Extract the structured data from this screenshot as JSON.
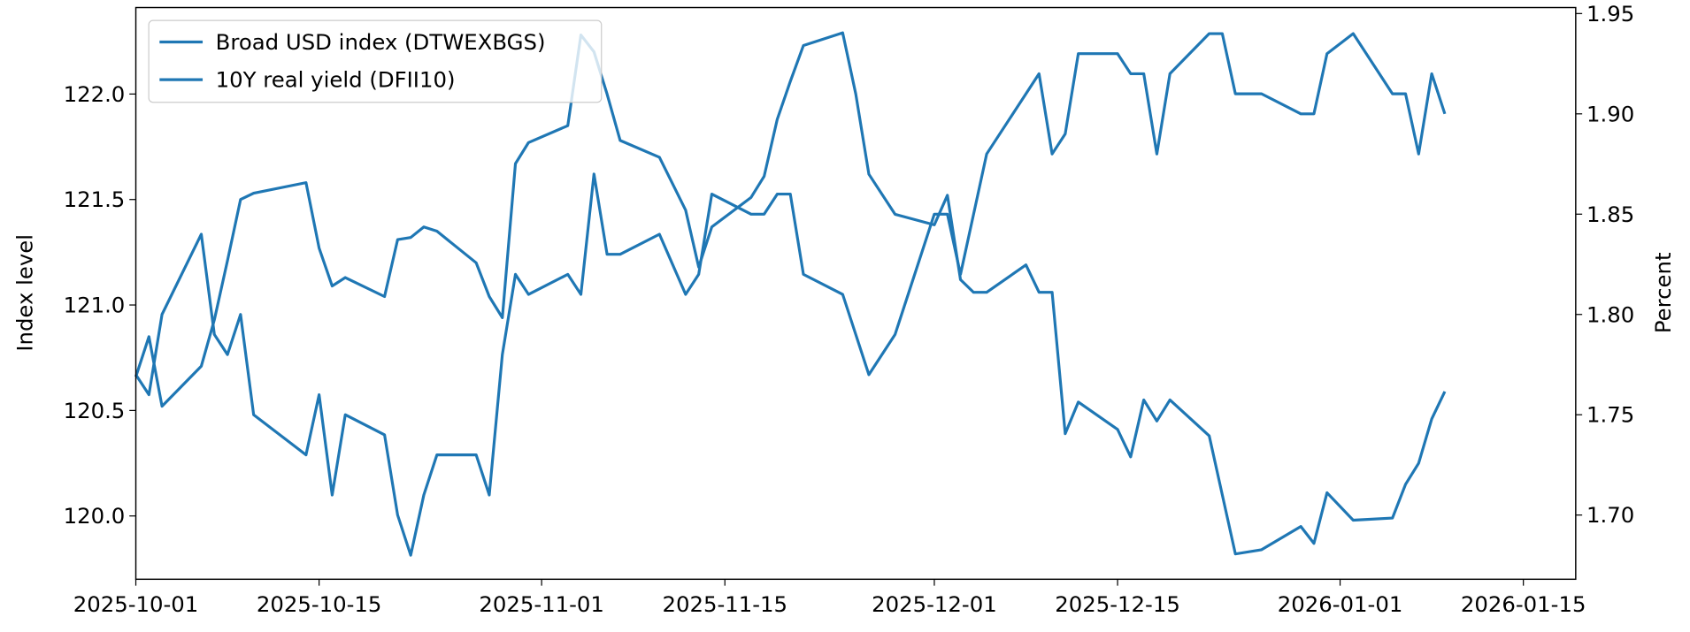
{
  "chart_data": {
    "type": "line",
    "y_label": "Index level",
    "y2_label": "Percent",
    "x": [
      "2025-10-01",
      "2025-10-02",
      "2025-10-03",
      "2025-10-06",
      "2025-10-07",
      "2025-10-08",
      "2025-10-09",
      "2025-10-10",
      "2025-10-14",
      "2025-10-15",
      "2025-10-16",
      "2025-10-17",
      "2025-10-20",
      "2025-10-21",
      "2025-10-22",
      "2025-10-23",
      "2025-10-24",
      "2025-10-27",
      "2025-10-28",
      "2025-10-29",
      "2025-10-30",
      "2025-10-31",
      "2025-11-03",
      "2025-11-04",
      "2025-11-05",
      "2025-11-06",
      "2025-11-07",
      "2025-11-10",
      "2025-11-12",
      "2025-11-13",
      "2025-11-14",
      "2025-11-17",
      "2025-11-18",
      "2025-11-19",
      "2025-11-20",
      "2025-11-21",
      "2025-11-24",
      "2025-11-25",
      "2025-11-26",
      "2025-11-28",
      "2025-12-01",
      "2025-12-02",
      "2025-12-03",
      "2025-12-04",
      "2025-12-05",
      "2025-12-08",
      "2025-12-09",
      "2025-12-10",
      "2025-12-11",
      "2025-12-12",
      "2025-12-15",
      "2025-12-16",
      "2025-12-17",
      "2025-12-18",
      "2025-12-19",
      "2025-12-22",
      "2025-12-23",
      "2025-12-24",
      "2025-12-26",
      "2025-12-29",
      "2025-12-30",
      "2025-12-31",
      "2026-01-02",
      "2026-01-05",
      "2026-01-06",
      "2026-01-07",
      "2026-01-08",
      "2026-01-09"
    ],
    "series": [
      {
        "name": "Broad USD index (DTWEXBGS)",
        "color": "#1f77b4",
        "axis": "y",
        "values": [
          120.66,
          120.85,
          120.52,
          120.71,
          120.93,
          121.21,
          121.5,
          121.53,
          121.58,
          121.27,
          121.09,
          121.13,
          121.04,
          121.31,
          121.32,
          121.37,
          121.35,
          121.2,
          121.04,
          120.94,
          121.67,
          121.77,
          121.85,
          122.28,
          122.2,
          122.0,
          121.78,
          121.7,
          121.45,
          121.18,
          121.37,
          121.51,
          121.61,
          121.88,
          122.06,
          122.23,
          122.29,
          122.0,
          121.62,
          121.43,
          121.38,
          121.52,
          121.12,
          121.06,
          121.06,
          121.19,
          121.06,
          121.06,
          120.39,
          120.54,
          120.41,
          120.28,
          120.55,
          120.45,
          120.55,
          120.38,
          120.1,
          119.82,
          119.84,
          119.95,
          119.87,
          120.11,
          119.98,
          119.99,
          120.15,
          120.25,
          120.46,
          120.59
        ]
      },
      {
        "name": "10Y real yield (DFII10)",
        "color": "#1f77b4",
        "axis": "y2",
        "values": [
          1.77,
          1.76,
          1.8,
          1.84,
          1.79,
          1.78,
          1.8,
          1.75,
          1.73,
          1.76,
          1.71,
          1.75,
          1.74,
          1.7,
          1.68,
          1.71,
          1.73,
          1.73,
          1.71,
          1.78,
          1.82,
          1.81,
          1.82,
          1.81,
          1.87,
          1.83,
          1.83,
          1.84,
          1.81,
          1.82,
          1.86,
          1.85,
          1.85,
          1.86,
          1.86,
          1.82,
          1.81,
          1.79,
          1.77,
          1.79,
          1.85,
          1.85,
          1.82,
          1.85,
          1.88,
          1.91,
          1.92,
          1.88,
          1.89,
          1.93,
          1.93,
          1.92,
          1.92,
          1.88,
          1.92,
          1.94,
          1.94,
          1.91,
          1.91,
          1.9,
          1.9,
          1.93,
          1.94,
          1.91,
          1.91,
          1.88,
          1.92,
          1.9
        ]
      }
    ],
    "xlim": [
      "2025-10-01",
      "2026-01-19"
    ],
    "xticks": [
      "2025-10-01",
      "2025-10-15",
      "2025-11-01",
      "2025-11-15",
      "2025-12-01",
      "2025-12-15",
      "2026-01-01",
      "2026-01-15"
    ],
    "ylim": [
      119.7,
      122.41
    ],
    "yticks": [
      {
        "value": 120,
        "label": "120.0"
      },
      120.5,
      {
        "value": 121,
        "label": "121.0"
      },
      121.5,
      {
        "value": 122,
        "label": "122.0"
      }
    ],
    "y2lim": [
      1.668,
      1.953
    ],
    "y2ticks": [
      {
        "value": 1.7,
        "label": "1.70"
      },
      1.75,
      {
        "value": 1.8,
        "label": "1.80"
      },
      1.85,
      {
        "value": 1.9,
        "label": "1.90"
      },
      1.95
    ],
    "legend": "upper left",
    "grid": false
  }
}
